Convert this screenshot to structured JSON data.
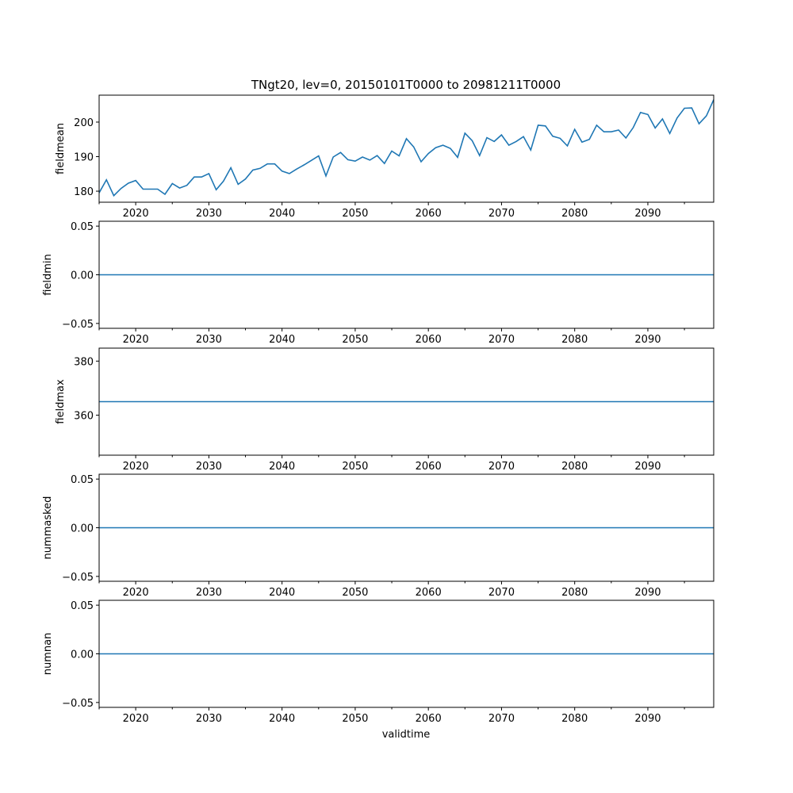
{
  "chart_data": {
    "type": "line",
    "title": "TNgt20, lev=0, 20150101T0000 to 20981211T0000",
    "xlabel": "validtime",
    "xlim": [
      2015,
      2099
    ],
    "xticks": [
      2020,
      2030,
      2040,
      2050,
      2060,
      2070,
      2080,
      2090
    ],
    "x": [
      2015,
      2016,
      2017,
      2018,
      2019,
      2020,
      2021,
      2022,
      2023,
      2024,
      2025,
      2026,
      2027,
      2028,
      2029,
      2030,
      2031,
      2032,
      2033,
      2034,
      2035,
      2036,
      2037,
      2038,
      2039,
      2040,
      2041,
      2042,
      2043,
      2044,
      2045,
      2046,
      2047,
      2048,
      2049,
      2050,
      2051,
      2052,
      2053,
      2054,
      2055,
      2056,
      2057,
      2058,
      2059,
      2060,
      2061,
      2062,
      2063,
      2064,
      2065,
      2066,
      2067,
      2068,
      2069,
      2070,
      2071,
      2072,
      2073,
      2074,
      2075,
      2076,
      2077,
      2078,
      2079,
      2080,
      2081,
      2082,
      2083,
      2084,
      2085,
      2086,
      2087,
      2088,
      2089,
      2090,
      2091,
      2092,
      2093,
      2094,
      2095,
      2096,
      2097,
      2098,
      2099
    ],
    "panels": [
      {
        "ylabel": "fieldmean",
        "ylim": [
          176.8,
          207.8
        ],
        "yticks": [
          "180",
          "190",
          "200"
        ],
        "ytick_values": [
          180,
          190,
          200
        ],
        "values": [
          179.5,
          183.3,
          178.7,
          180.8,
          182.3,
          183.1,
          180.6,
          180.6,
          180.6,
          179.1,
          182.2,
          180.9,
          181.7,
          184.1,
          184.1,
          185.1,
          180.4,
          182.9,
          186.8,
          182.0,
          183.5,
          186.1,
          186.6,
          187.9,
          187.9,
          185.8,
          185.1,
          186.4,
          187.6,
          188.9,
          190.2,
          184.4,
          189.9,
          191.2,
          189.1,
          188.7,
          189.9,
          189.0,
          190.3,
          188.0,
          191.6,
          190.2,
          195.2,
          192.8,
          188.5,
          190.9,
          192.6,
          193.3,
          192.4,
          189.8,
          196.8,
          194.6,
          190.3,
          195.5,
          194.4,
          196.3,
          193.3,
          194.4,
          195.8,
          191.9,
          199.1,
          198.9,
          195.9,
          195.3,
          193.1,
          197.9,
          194.2,
          195.0,
          199.1,
          197.2,
          197.2,
          197.7,
          195.4,
          198.4,
          202.8,
          202.2,
          198.3,
          200.9,
          196.7,
          201.2,
          204.0,
          204.1,
          199.5,
          201.8,
          206.5
        ]
      },
      {
        "ylabel": "fieldmin",
        "ylim": [
          -0.055,
          0.055
        ],
        "yticks": [
          "−0.05",
          "0.00",
          "0.05"
        ],
        "ytick_values": [
          -0.05,
          0,
          0.05
        ],
        "constant": 0
      },
      {
        "ylabel": "fieldmax",
        "ylim": [
          345.2,
          384.8
        ],
        "yticks": [
          "360",
          "380"
        ],
        "ytick_values": [
          360,
          380
        ],
        "constant": 365
      },
      {
        "ylabel": "nummasked",
        "ylim": [
          -0.055,
          0.055
        ],
        "yticks": [
          "−0.05",
          "0.00",
          "0.05"
        ],
        "ytick_values": [
          -0.05,
          0,
          0.05
        ],
        "constant": 0
      },
      {
        "ylabel": "numnan",
        "ylim": [
          -0.055,
          0.055
        ],
        "yticks": [
          "−0.05",
          "0.00",
          "0.05"
        ],
        "ytick_values": [
          -0.05,
          0,
          0.05
        ],
        "constant": 0
      }
    ],
    "line_color": "#1f77b4",
    "grid": false
  }
}
